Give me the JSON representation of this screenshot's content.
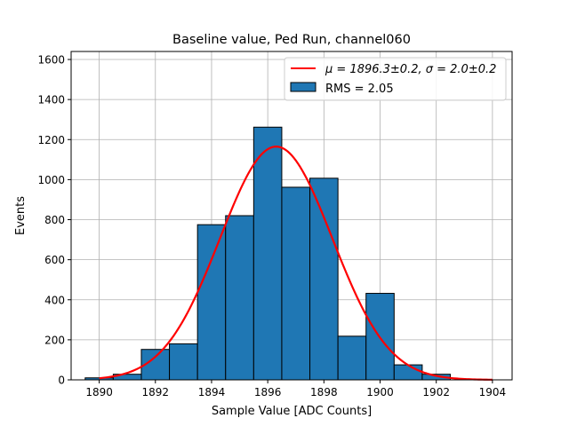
{
  "chart_data": {
    "type": "bar",
    "title": "Baseline value, Ped Run, channel060",
    "xlabel": "Sample Value [ADC Counts]",
    "ylabel": "Events",
    "xlim": [
      1889.0,
      1904.7
    ],
    "ylim": [
      0,
      1640
    ],
    "grid": true,
    "legend_position": "top-right",
    "x_ticks": [
      1890,
      1892,
      1894,
      1896,
      1898,
      1900,
      1902,
      1904
    ],
    "y_ticks": [
      0,
      200,
      400,
      600,
      800,
      1000,
      1200,
      1400,
      1600
    ],
    "histogram": {
      "name": "RMS = 2.05",
      "color": "#1f77b4",
      "bin_edges": [
        1889.5,
        1890.5,
        1891.5,
        1892.5,
        1893.5,
        1894.5,
        1895.5,
        1896.5,
        1897.5,
        1898.5,
        1899.5,
        1900.5,
        1901.5,
        1902.5
      ],
      "values": [
        10,
        28,
        152,
        180,
        775,
        820,
        1262,
        962,
        1007,
        218,
        432,
        75,
        28
      ]
    },
    "fit": {
      "name": "$\\mu = 1896.3\\pm0.2$, $\\sigma = 2.0\\pm0.2$",
      "legend_label": "μ = 1896.3±0.2, σ = 2.0±0.2",
      "color": "#ff0000",
      "mu": 1896.3,
      "sigma": 2.0,
      "amplitude": 1165,
      "x_range": [
        1890,
        1904
      ]
    }
  }
}
